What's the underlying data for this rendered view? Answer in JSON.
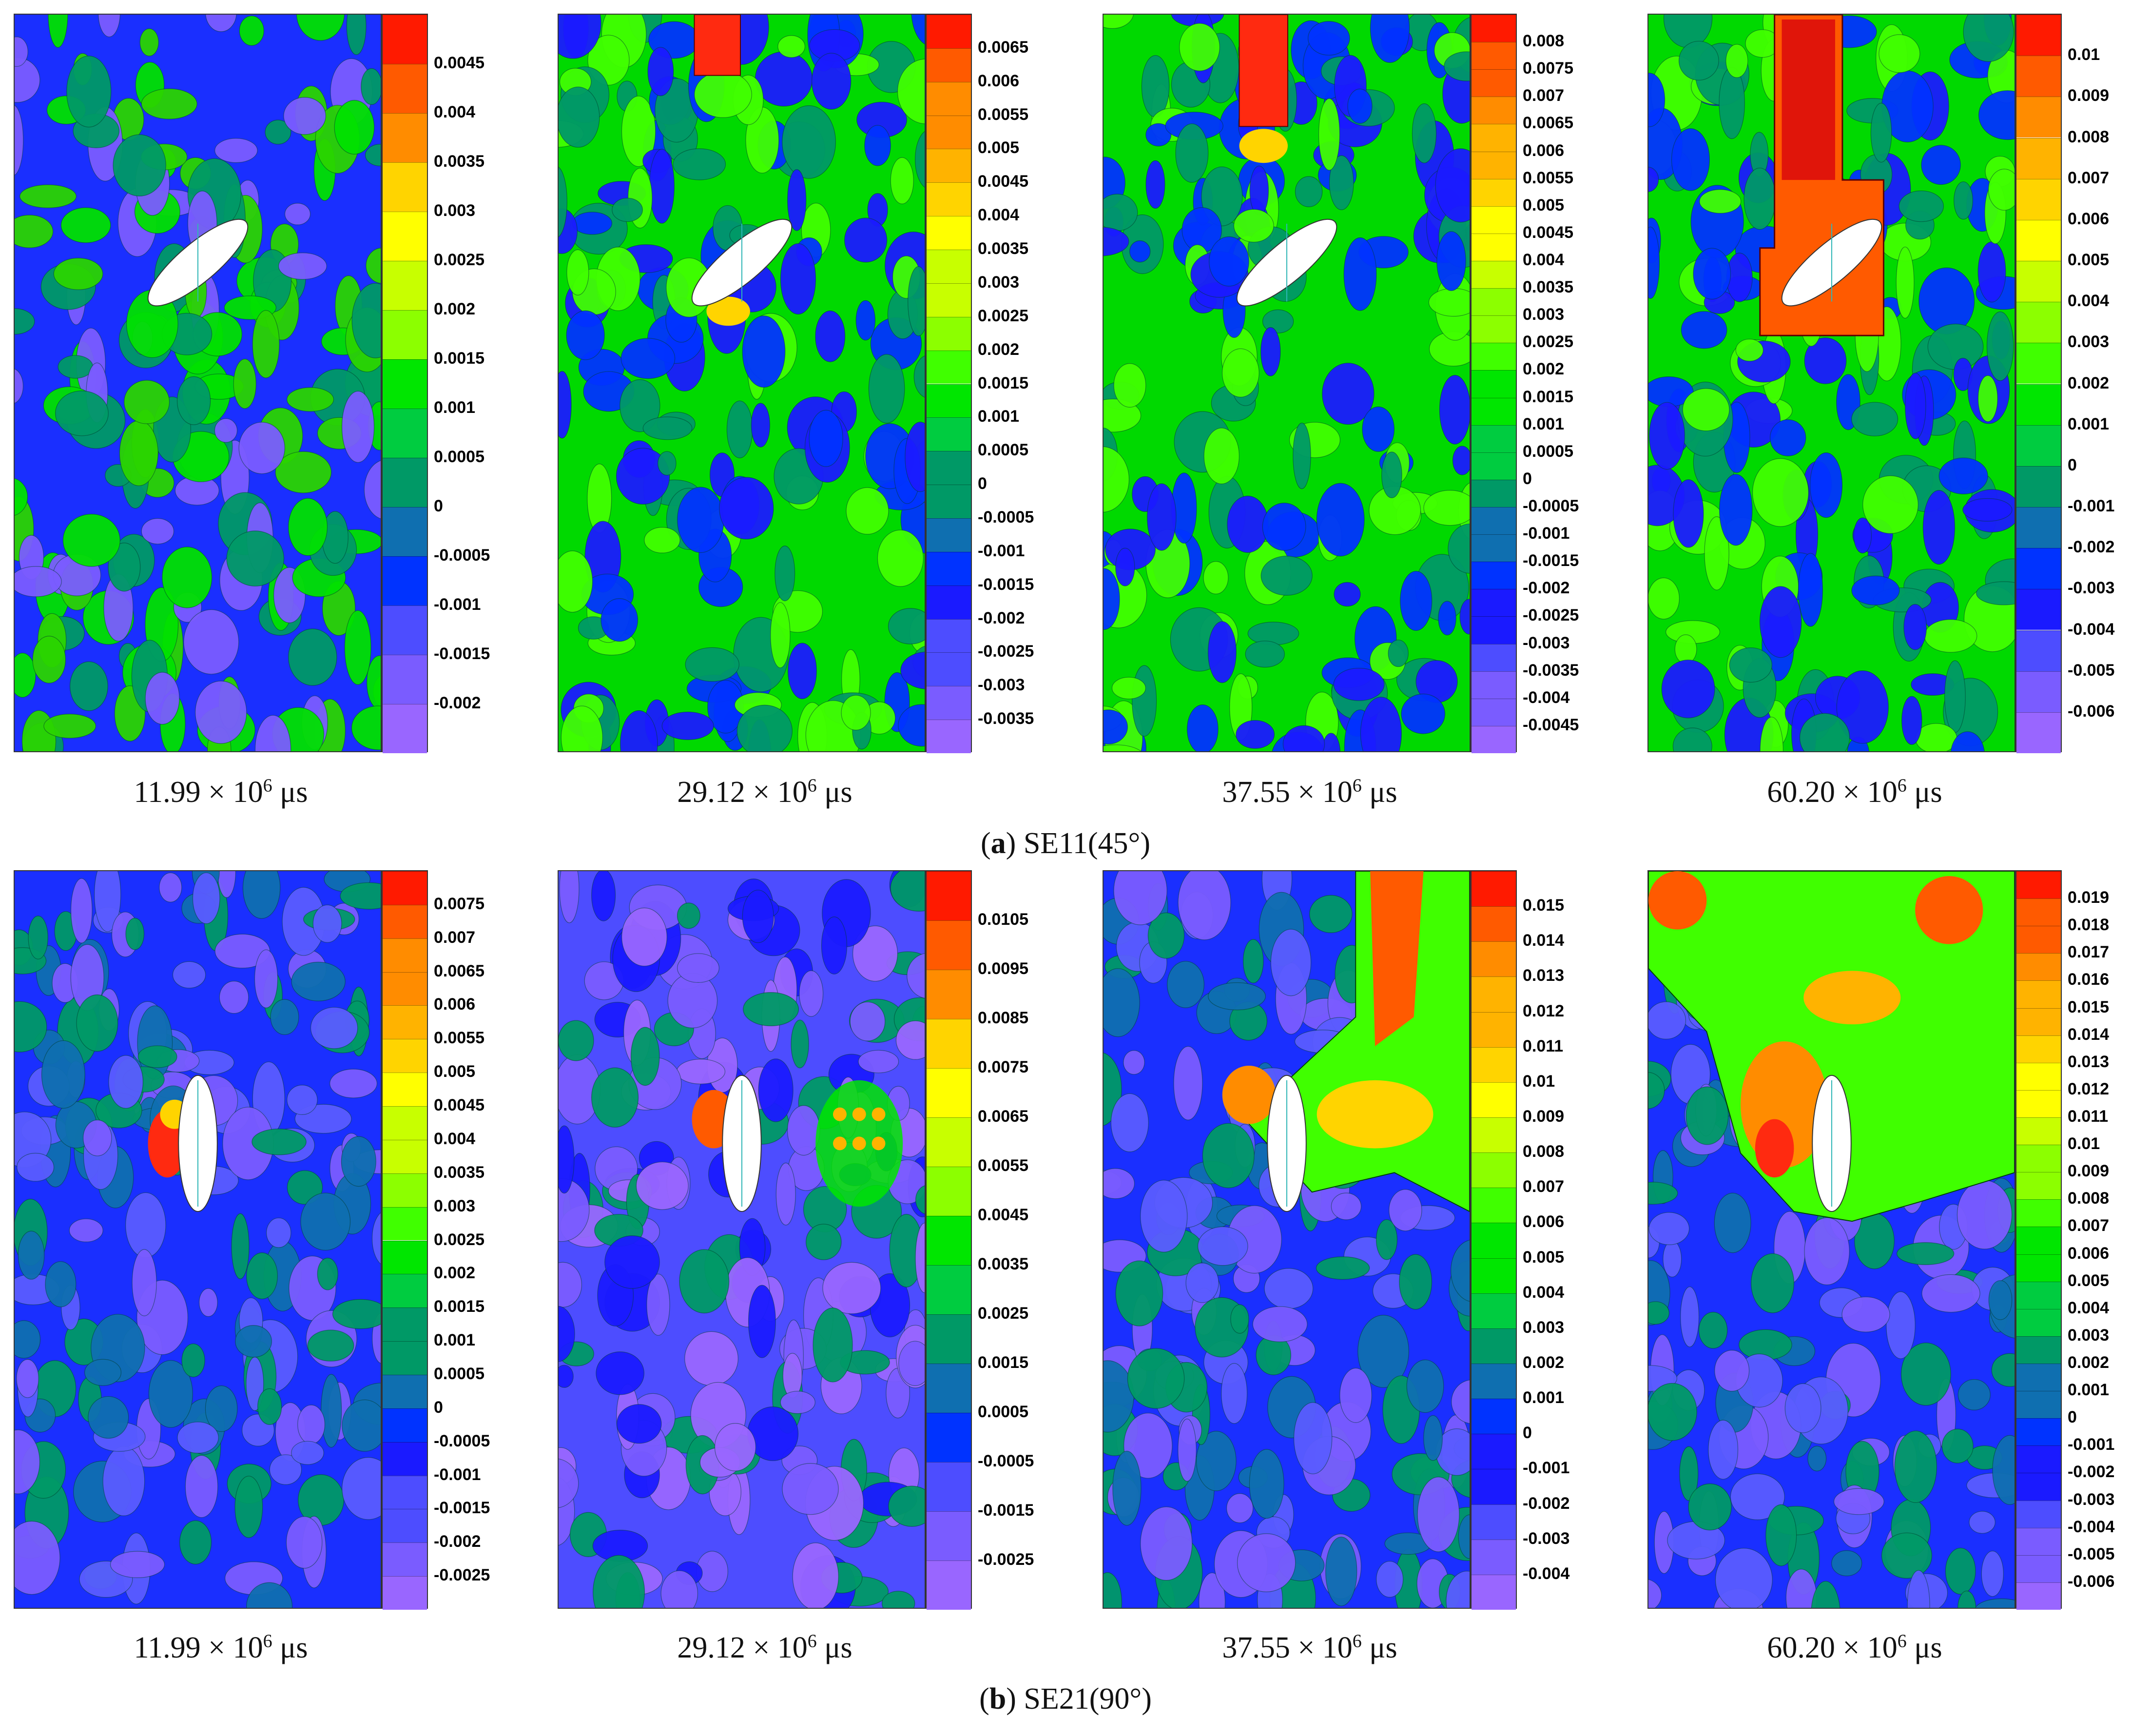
{
  "figure": {
    "rows": [
      {
        "caption_letter": "a",
        "caption_text": "SE11(45°)",
        "hole": "inclined-45",
        "panels": [
          {
            "time_value": "11.99",
            "ticks": [
              "0.0045",
              "0.004",
              "0.0035",
              "0.003",
              "0.0025",
              "0.002",
              "0.0015",
              "0.001",
              "0.0005",
              "0",
              "-0.0005",
              "-0.001",
              "-0.0015",
              "-0.002"
            ],
            "hotspot": "none",
            "baseline": "mixed-blue"
          },
          {
            "time_value": "29.12",
            "ticks": [
              "0.0065",
              "0.006",
              "0.0055",
              "0.005",
              "0.0045",
              "0.004",
              "0.0035",
              "0.003",
              "0.0025",
              "0.002",
              "0.0015",
              "0.001",
              "0.0005",
              "0",
              "-0.0005",
              "-0.001",
              "-0.0015",
              "-0.002",
              "-0.0025",
              "-0.003",
              "-0.0035"
            ],
            "hotspot": "top-band-small",
            "baseline": "green"
          },
          {
            "time_value": "37.55",
            "ticks": [
              "0.008",
              "0.0075",
              "0.007",
              "0.0065",
              "0.006",
              "0.0055",
              "0.005",
              "0.0045",
              "0.004",
              "0.0035",
              "0.003",
              "0.0025",
              "0.002",
              "0.0015",
              "0.001",
              "0.0005",
              "0",
              "-0.0005",
              "-0.001",
              "-0.0015",
              "-0.002",
              "-0.0025",
              "-0.003",
              "-0.0035",
              "-0.004",
              "-0.0045"
            ],
            "hotspot": "top-band",
            "baseline": "green"
          },
          {
            "time_value": "60.20",
            "ticks": [
              "0.01",
              "0.009",
              "0.008",
              "0.007",
              "0.006",
              "0.005",
              "0.004",
              "0.003",
              "0.002",
              "0.001",
              "0",
              "-0.001",
              "-0.002",
              "-0.003",
              "-0.004",
              "-0.005",
              "-0.006"
            ],
            "hotspot": "top-band-wide",
            "baseline": "green"
          }
        ]
      },
      {
        "caption_letter": "b",
        "caption_text": "SE21(90°)",
        "hole": "vertical",
        "panels": [
          {
            "time_value": "11.99",
            "ticks": [
              "0.0075",
              "0.007",
              "0.0065",
              "0.006",
              "0.0055",
              "0.005",
              "0.0045",
              "0.004",
              "0.0035",
              "0.003",
              "0.0025",
              "0.002",
              "0.0015",
              "0.001",
              "0.0005",
              "0",
              "-0.0005",
              "-0.001",
              "-0.0015",
              "-0.002",
              "-0.0025"
            ],
            "hotspot": "hole-left",
            "baseline": "blue"
          },
          {
            "time_value": "29.12",
            "ticks": [
              "0.0105",
              "0.0095",
              "0.0085",
              "0.0075",
              "0.0065",
              "0.0055",
              "0.0045",
              "0.0035",
              "0.0025",
              "0.0015",
              "0.0005",
              "-0.0005",
              "-0.0015",
              "-0.0025"
            ],
            "hotspot": "hole-left-right",
            "baseline": "violet"
          },
          {
            "time_value": "37.55",
            "ticks": [
              "0.015",
              "0.014",
              "0.013",
              "0.012",
              "0.011",
              "0.01",
              "0.009",
              "0.008",
              "0.007",
              "0.006",
              "0.005",
              "0.004",
              "0.003",
              "0.002",
              "0.001",
              "0",
              "-0.001",
              "-0.002",
              "-0.003",
              "-0.004"
            ],
            "hotspot": "upper-right",
            "baseline": "blue"
          },
          {
            "time_value": "60.20",
            "ticks": [
              "0.019",
              "0.018",
              "0.017",
              "0.016",
              "0.015",
              "0.014",
              "0.013",
              "0.012",
              "0.011",
              "0.01",
              "0.009",
              "0.008",
              "0.007",
              "0.006",
              "0.005",
              "0.004",
              "0.003",
              "0.002",
              "0.001",
              "0",
              "-0.001",
              "-0.002",
              "-0.003",
              "-0.004",
              "-0.005",
              "-0.006"
            ],
            "hotspot": "upper-wide",
            "baseline": "blue"
          }
        ]
      }
    ],
    "time_multiplier": "× 10",
    "time_exponent": "6",
    "time_unit": "μs"
  },
  "chart_data": [
    {
      "type": "heatmap",
      "title": "SE11(45°)",
      "time_us_e6": 11.99,
      "colorbar_range": [
        -0.002,
        0.0045
      ],
      "colorbar_step": 0.0005
    },
    {
      "type": "heatmap",
      "title": "SE11(45°)",
      "time_us_e6": 29.12,
      "colorbar_range": [
        -0.0035,
        0.0065
      ],
      "colorbar_step": 0.0005
    },
    {
      "type": "heatmap",
      "title": "SE11(45°)",
      "time_us_e6": 37.55,
      "colorbar_range": [
        -0.0045,
        0.008
      ],
      "colorbar_step": 0.0005
    },
    {
      "type": "heatmap",
      "title": "SE11(45°)",
      "time_us_e6": 60.2,
      "colorbar_range": [
        -0.006,
        0.01
      ],
      "colorbar_step": 0.001
    },
    {
      "type": "heatmap",
      "title": "SE21(90°)",
      "time_us_e6": 11.99,
      "colorbar_range": [
        -0.0025,
        0.0075
      ],
      "colorbar_step": 0.0005
    },
    {
      "type": "heatmap",
      "title": "SE21(90°)",
      "time_us_e6": 29.12,
      "colorbar_range": [
        -0.0025,
        0.0105
      ],
      "colorbar_step": 0.001
    },
    {
      "type": "heatmap",
      "title": "SE21(90°)",
      "time_us_e6": 37.55,
      "colorbar_range": [
        -0.004,
        0.015
      ],
      "colorbar_step": 0.001
    },
    {
      "type": "heatmap",
      "title": "SE21(90°)",
      "time_us_e6": 60.2,
      "colorbar_range": [
        -0.006,
        0.019
      ],
      "colorbar_step": 0.001
    }
  ],
  "palette": [
    "#ff1a00",
    "#ff5a00",
    "#ff8c00",
    "#ffb300",
    "#ffd400",
    "#ffff00",
    "#c8ff00",
    "#8cff00",
    "#40ff00",
    "#00e600",
    "#00cc40",
    "#009966",
    "#0f6fb0",
    "#0033ff",
    "#1a1aff",
    "#4d4dff",
    "#7a5cff",
    "#9966ff"
  ]
}
